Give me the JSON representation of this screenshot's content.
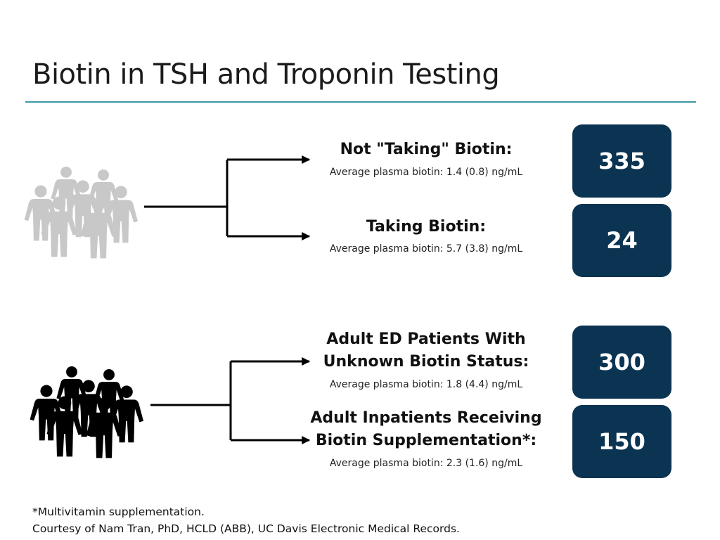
{
  "title": "Biotin in TSH and Troponin Testing",
  "colors": {
    "accent_rule": "#3f97a9",
    "count_box": "#0b3452",
    "people_gray": "#c8c8c8",
    "people_black": "#000000"
  },
  "groups": [
    {
      "icon": "crowd-gray-icon",
      "branches": [
        {
          "label_lines": [
            "Not \"Taking\" Biotin:"
          ],
          "detail": "Average plasma biotin: 1.4 (0.8) ng/mL",
          "count": "335"
        },
        {
          "label_lines": [
            "Taking Biotin:"
          ],
          "detail": "Average plasma biotin: 5.7 (3.8) ng/mL",
          "count": "24"
        }
      ]
    },
    {
      "icon": "crowd-black-icon",
      "branches": [
        {
          "label_lines": [
            "Adult ED Patients With",
            "Unknown Biotin Status:"
          ],
          "detail": "Average plasma biotin: 1.8 (4.4) ng/mL",
          "count": "300"
        },
        {
          "label_lines": [
            "Adult Inpatients Receiving",
            "Biotin Supplementation*:"
          ],
          "detail": "Average plasma biotin: 2.3 (1.6) ng/mL",
          "count": "150"
        }
      ]
    }
  ],
  "footnotes": [
    "*Multivitamin supplementation.",
    "Courtesy of Nam Tran, PhD, HCLD (ABB), UC Davis Electronic Medical Records."
  ]
}
